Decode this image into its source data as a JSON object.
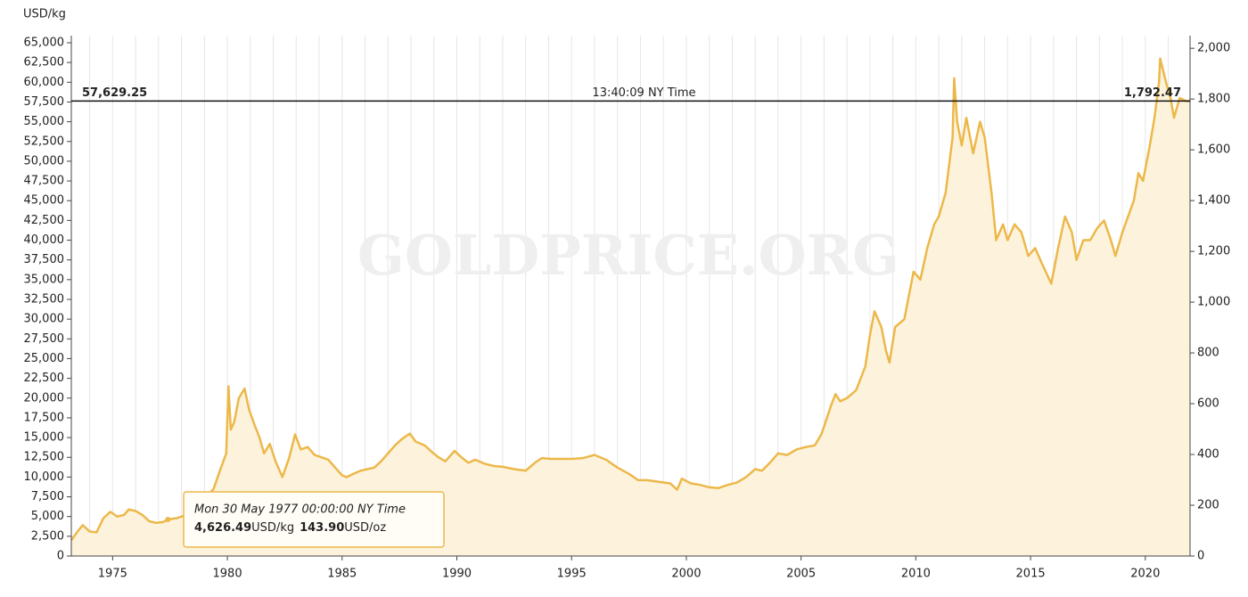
{
  "chart_data": {
    "type": "area",
    "y_axis_label": "USD/kg",
    "watermark": "GOLDPRICE.ORG",
    "color": "#ecb84a",
    "fill_color": "#fdf3dc",
    "xlim": [
      1973.2,
      2021.95
    ],
    "ylim": [
      0,
      65000
    ],
    "y2lim": [
      0,
      2021.7
    ],
    "xticks": [
      1975,
      1980,
      1985,
      1990,
      1995,
      2000,
      2005,
      2010,
      2015,
      2020
    ],
    "xgrid": [
      1974,
      1975,
      1976,
      1977,
      1978,
      1979,
      1980,
      1981,
      1982,
      1983,
      1984,
      1985,
      1986,
      1987,
      1988,
      1989,
      1990,
      1991,
      1992,
      1993,
      1994,
      1995,
      1996,
      1997,
      1998,
      1999,
      2000,
      2001,
      2002,
      2003,
      2004,
      2005,
      2006,
      2007,
      2008,
      2009,
      2010,
      2011,
      2012,
      2013,
      2014,
      2015,
      2016,
      2017,
      2018,
      2019,
      2020,
      2021
    ],
    "yticks": [
      0,
      {
        "value": 2500,
        "label": "2,500"
      },
      {
        "value": 5000,
        "label": "5,000"
      },
      {
        "value": 7500,
        "label": "7,500"
      },
      {
        "value": 10000,
        "label": "10,000"
      },
      {
        "value": 12500,
        "label": "12,500"
      },
      {
        "value": 15000,
        "label": "15,000"
      },
      {
        "value": 17500,
        "label": "17,500"
      },
      {
        "value": 20000,
        "label": "20,000"
      },
      {
        "value": 22500,
        "label": "22,500"
      },
      {
        "value": 25000,
        "label": "25,000"
      },
      {
        "value": 27500,
        "label": "27,500"
      },
      {
        "value": 30000,
        "label": "30,000"
      },
      {
        "value": 32500,
        "label": "32,500"
      },
      {
        "value": 35000,
        "label": "35,000"
      },
      {
        "value": 37500,
        "label": "37,500"
      },
      {
        "value": 40000,
        "label": "40,000"
      },
      {
        "value": 42500,
        "label": "42,500"
      },
      {
        "value": 45000,
        "label": "45,000"
      },
      {
        "value": 47500,
        "label": "47,500"
      },
      {
        "value": 50000,
        "label": "50,000"
      },
      {
        "value": 52500,
        "label": "52,500"
      },
      {
        "value": 55000,
        "label": "55,000"
      },
      {
        "value": 57500,
        "label": "57,500"
      },
      {
        "value": 60000,
        "label": "60,000"
      },
      {
        "value": 62500,
        "label": "62,500"
      },
      {
        "value": 65000,
        "label": "65,000"
      }
    ],
    "y2ticks": [
      0,
      200,
      400,
      600,
      800,
      {
        "value": 1000,
        "label": "1,000"
      },
      {
        "value": 1200,
        "label": "1,200"
      },
      {
        "value": 1400,
        "label": "1,400"
      },
      {
        "value": 1600,
        "label": "1,600"
      },
      {
        "value": 1800,
        "label": "1,800"
      },
      {
        "value": 2000,
        "label": "2,000"
      }
    ],
    "x": [
      1973.2,
      1973.5,
      1973.7,
      1974.0,
      1974.3,
      1974.6,
      1974.9,
      1975.2,
      1975.5,
      1975.7,
      1976.0,
      1976.3,
      1976.6,
      1976.9,
      1977.2,
      1977.41,
      1977.8,
      1978.2,
      1978.5,
      1978.8,
      1979.1,
      1979.4,
      1979.7,
      1979.95,
      1980.05,
      1980.15,
      1980.3,
      1980.5,
      1980.75,
      1980.95,
      1981.2,
      1981.4,
      1981.6,
      1981.85,
      1982.1,
      1982.4,
      1982.7,
      1982.95,
      1983.2,
      1983.5,
      1983.8,
      1984.1,
      1984.4,
      1984.7,
      1985.0,
      1985.2,
      1985.5,
      1985.8,
      1986.1,
      1986.4,
      1986.7,
      1987.0,
      1987.3,
      1987.6,
      1987.95,
      1988.2,
      1988.6,
      1988.9,
      1989.2,
      1989.5,
      1989.9,
      1990.2,
      1990.5,
      1990.8,
      1991.2,
      1991.6,
      1992.0,
      1992.5,
      1993.0,
      1993.4,
      1993.7,
      1994.1,
      1994.5,
      1995.0,
      1995.5,
      1996.0,
      1996.5,
      1997.0,
      1997.5,
      1997.9,
      1998.3,
      1998.8,
      1999.3,
      1999.6,
      1999.8,
      2000.2,
      2000.6,
      2001.0,
      2001.4,
      2001.8,
      2002.2,
      2002.6,
      2003.0,
      2003.3,
      2003.7,
      2004.0,
      2004.4,
      2004.8,
      2005.2,
      2005.6,
      2005.9,
      2006.3,
      2006.5,
      2006.7,
      2007.0,
      2007.4,
      2007.8,
      2008.0,
      2008.2,
      2008.5,
      2008.7,
      2008.85,
      2009.1,
      2009.5,
      2009.9,
      2010.2,
      2010.5,
      2010.8,
      2011.0,
      2011.3,
      2011.6,
      2011.67,
      2011.8,
      2012.0,
      2012.2,
      2012.5,
      2012.8,
      2013.0,
      2013.3,
      2013.5,
      2013.8,
      2014.0,
      2014.3,
      2014.6,
      2014.9,
      2015.2,
      2015.5,
      2015.9,
      2016.2,
      2016.5,
      2016.8,
      2017.0,
      2017.3,
      2017.6,
      2017.9,
      2018.2,
      2018.5,
      2018.7,
      2019.0,
      2019.5,
      2019.7,
      2019.9,
      2020.2,
      2020.4,
      2020.6,
      2020.65,
      2020.9,
      2021.1,
      2021.25,
      2021.5,
      2021.8,
      2021.95
    ],
    "values": [
      2000,
      3200,
      3900,
      3100,
      3000,
      4800,
      5600,
      5000,
      5200,
      5900,
      5700,
      5200,
      4400,
      4200,
      4300,
      4626,
      4800,
      5200,
      5900,
      6500,
      7600,
      8500,
      11000,
      13000,
      21500,
      16000,
      17000,
      20000,
      21200,
      18500,
      16500,
      15000,
      13000,
      14200,
      12000,
      10000,
      12500,
      15400,
      13500,
      13800,
      12800,
      12500,
      12200,
      11200,
      10200,
      10000,
      10400,
      10800,
      11000,
      11200,
      12000,
      13000,
      14000,
      14800,
      15500,
      14500,
      14000,
      13200,
      12500,
      12000,
      13300,
      12500,
      11800,
      12200,
      11700,
      11400,
      11300,
      11000,
      10800,
      11800,
      12400,
      12300,
      12300,
      12300,
      12400,
      12800,
      12200,
      11200,
      10400,
      9600,
      9600,
      9400,
      9200,
      8400,
      9800,
      9200,
      9000,
      8700,
      8600,
      9000,
      9300,
      10000,
      11000,
      10800,
      12000,
      13000,
      12800,
      13500,
      13800,
      14000,
      15500,
      19000,
      20500,
      19600,
      20000,
      21000,
      24000,
      28000,
      31000,
      29000,
      26000,
      24500,
      29000,
      30000,
      36000,
      35000,
      39000,
      42000,
      43000,
      46000,
      53000,
      60500,
      55000,
      52000,
      55500,
      51000,
      55000,
      53000,
      46000,
      40000,
      42000,
      40000,
      42000,
      41000,
      38000,
      39000,
      37000,
      34500,
      39000,
      43000,
      41000,
      37500,
      40000,
      40000,
      41500,
      42500,
      40000,
      38000,
      41000,
      45000,
      48500,
      47500,
      52000,
      55500,
      60000,
      63000,
      60000,
      58000,
      55500,
      58000,
      57600,
      57629
    ],
    "current": {
      "value": 57629.25,
      "label": "57,629.25",
      "time": "13:40:09 NY Time",
      "oz_value": 1792.47,
      "oz_label": "1,792.47"
    },
    "tooltip": {
      "x": 1977.41,
      "date": "Mon 30 May 1977 00:00:00 NY Time",
      "value": 4626.49,
      "label": "4,626.49",
      "unit": "USD/kg",
      "oz_value": 143.9,
      "oz_label": "143.90",
      "oz_unit": "USD/oz"
    }
  }
}
